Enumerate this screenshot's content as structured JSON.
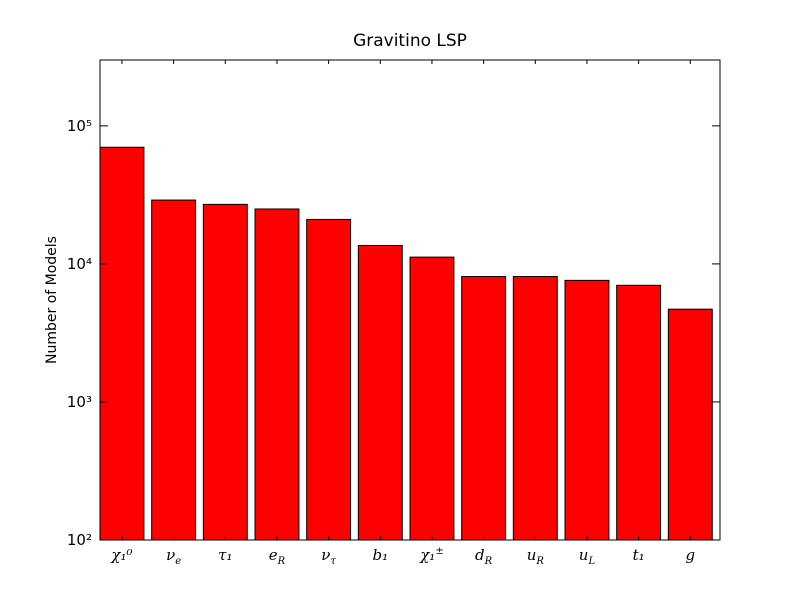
{
  "chart_data": {
    "type": "bar",
    "title": "Gravitino LSP",
    "y_label": "Number of Models",
    "categories": [
      "χ₁⁰",
      "νe",
      "τ₁",
      "eR",
      "ντ",
      "b₁",
      "χ₁±",
      "dR",
      "uR",
      "uL",
      "t₁",
      "g"
    ],
    "values": [
      70000,
      29000,
      27000,
      25000,
      21000,
      13600,
      11200,
      8100,
      8100,
      7600,
      7000,
      4700
    ],
    "color": "#ff0000",
    "log_scale": true,
    "ylim": [
      100,
      300000
    ],
    "yticks": [
      {
        "value": 100,
        "label": "10²"
      },
      {
        "value": 1000,
        "label": "10³"
      },
      {
        "value": 10000,
        "label": "10⁴"
      },
      {
        "value": 100000,
        "label": "10⁵"
      }
    ]
  }
}
